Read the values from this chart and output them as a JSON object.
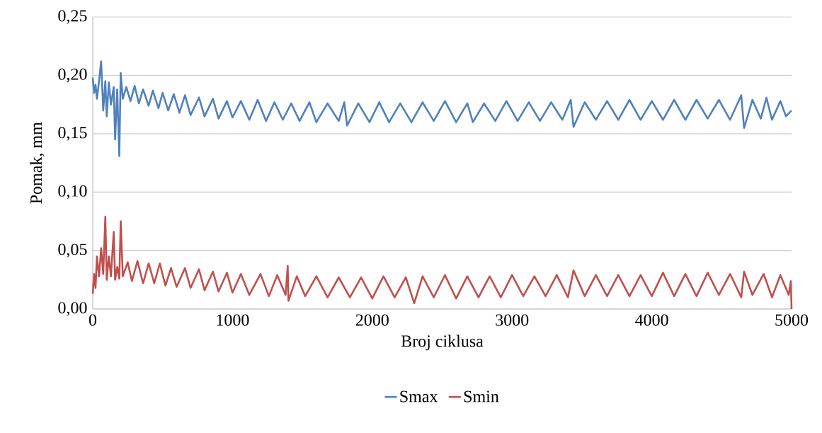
{
  "chart_data": {
    "type": "line",
    "xlabel": "Broj ciklusa",
    "ylabel": "Pomak, mm",
    "xlim": [
      0,
      5000
    ],
    "xticks": [
      0,
      1000,
      2000,
      3000,
      4000,
      5000
    ],
    "ylim": [
      0,
      0.25
    ],
    "yticks": [
      {
        "value": 0,
        "label": "0,00"
      },
      {
        "value": 0.05,
        "label": "0,05"
      },
      {
        "value": 0.1,
        "label": "0,10"
      },
      {
        "value": 0.15,
        "label": "0,15"
      },
      {
        "value": 0.2,
        "label": "0,20"
      },
      {
        "value": 0.25,
        "label": "0,25"
      }
    ],
    "grid": "y",
    "legend": "bottom",
    "marker": "none",
    "line_style": "solid",
    "series": [
      {
        "name": "Smax",
        "color": "#4f81bd",
        "x": [
          0,
          10,
          20,
          30,
          45,
          60,
          75,
          90,
          100,
          115,
          130,
          150,
          160,
          175,
          190,
          200,
          215,
          240,
          270,
          300,
          330,
          360,
          400,
          430,
          470,
          500,
          540,
          580,
          620,
          660,
          700,
          760,
          800,
          860,
          900,
          960,
          1000,
          1060,
          1120,
          1180,
          1240,
          1300,
          1360,
          1420,
          1480,
          1550,
          1600,
          1680,
          1760,
          1800,
          1820,
          1900,
          1980,
          2050,
          2120,
          2200,
          2280,
          2360,
          2440,
          2520,
          2600,
          2680,
          2720,
          2800,
          2880,
          2960,
          3040,
          3120,
          3200,
          3280,
          3360,
          3420,
          3440,
          3520,
          3600,
          3680,
          3760,
          3840,
          3920,
          4000,
          4080,
          4160,
          4240,
          4320,
          4400,
          4480,
          4560,
          4640,
          4660,
          4720,
          4780,
          4820,
          4860,
          4920,
          4960,
          5000
        ],
        "values": [
          0.198,
          0.185,
          0.192,
          0.18,
          0.195,
          0.212,
          0.17,
          0.195,
          0.165,
          0.194,
          0.175,
          0.19,
          0.145,
          0.188,
          0.131,
          0.202,
          0.18,
          0.19,
          0.178,
          0.191,
          0.176,
          0.188,
          0.174,
          0.187,
          0.172,
          0.185,
          0.17,
          0.184,
          0.168,
          0.183,
          0.166,
          0.181,
          0.165,
          0.18,
          0.163,
          0.178,
          0.164,
          0.178,
          0.162,
          0.179,
          0.161,
          0.177,
          0.162,
          0.176,
          0.161,
          0.177,
          0.16,
          0.176,
          0.161,
          0.177,
          0.157,
          0.176,
          0.16,
          0.177,
          0.16,
          0.176,
          0.16,
          0.177,
          0.161,
          0.178,
          0.16,
          0.176,
          0.16,
          0.176,
          0.161,
          0.178,
          0.161,
          0.177,
          0.161,
          0.177,
          0.162,
          0.179,
          0.156,
          0.177,
          0.162,
          0.178,
          0.162,
          0.179,
          0.162,
          0.178,
          0.162,
          0.179,
          0.162,
          0.179,
          0.163,
          0.179,
          0.162,
          0.183,
          0.155,
          0.179,
          0.163,
          0.181,
          0.162,
          0.178,
          0.165,
          0.17
        ]
      },
      {
        "name": "Smin",
        "color": "#c0504d",
        "x": [
          0,
          10,
          20,
          30,
          45,
          60,
          75,
          90,
          100,
          115,
          130,
          150,
          160,
          175,
          190,
          200,
          215,
          250,
          280,
          320,
          360,
          400,
          440,
          480,
          520,
          560,
          600,
          660,
          700,
          760,
          800,
          860,
          900,
          960,
          1000,
          1060,
          1120,
          1200,
          1260,
          1320,
          1380,
          1395,
          1400,
          1460,
          1520,
          1600,
          1680,
          1760,
          1840,
          1920,
          2000,
          2080,
          2160,
          2240,
          2300,
          2360,
          2440,
          2520,
          2600,
          2680,
          2760,
          2840,
          2920,
          3000,
          3080,
          3160,
          3240,
          3320,
          3400,
          3440,
          3520,
          3600,
          3680,
          3760,
          3840,
          3920,
          4000,
          4080,
          4160,
          4240,
          4320,
          4400,
          4480,
          4560,
          4640,
          4660,
          4720,
          4800,
          4860,
          4920,
          4980,
          4995,
          5000
        ],
        "values": [
          0.013,
          0.03,
          0.018,
          0.045,
          0.028,
          0.052,
          0.03,
          0.079,
          0.025,
          0.045,
          0.028,
          0.066,
          0.025,
          0.036,
          0.026,
          0.075,
          0.028,
          0.04,
          0.024,
          0.041,
          0.022,
          0.039,
          0.022,
          0.039,
          0.02,
          0.035,
          0.019,
          0.035,
          0.018,
          0.034,
          0.016,
          0.032,
          0.015,
          0.031,
          0.014,
          0.03,
          0.012,
          0.03,
          0.011,
          0.029,
          0.012,
          0.037,
          0.007,
          0.028,
          0.011,
          0.028,
          0.01,
          0.027,
          0.01,
          0.027,
          0.009,
          0.028,
          0.01,
          0.027,
          0.005,
          0.028,
          0.01,
          0.029,
          0.009,
          0.028,
          0.01,
          0.028,
          0.01,
          0.029,
          0.011,
          0.028,
          0.011,
          0.029,
          0.01,
          0.033,
          0.011,
          0.029,
          0.011,
          0.029,
          0.011,
          0.029,
          0.011,
          0.031,
          0.011,
          0.03,
          0.011,
          0.031,
          0.012,
          0.03,
          0.01,
          0.032,
          0.012,
          0.03,
          0.01,
          0.029,
          0.012,
          0.024,
          0
        ]
      }
    ]
  }
}
